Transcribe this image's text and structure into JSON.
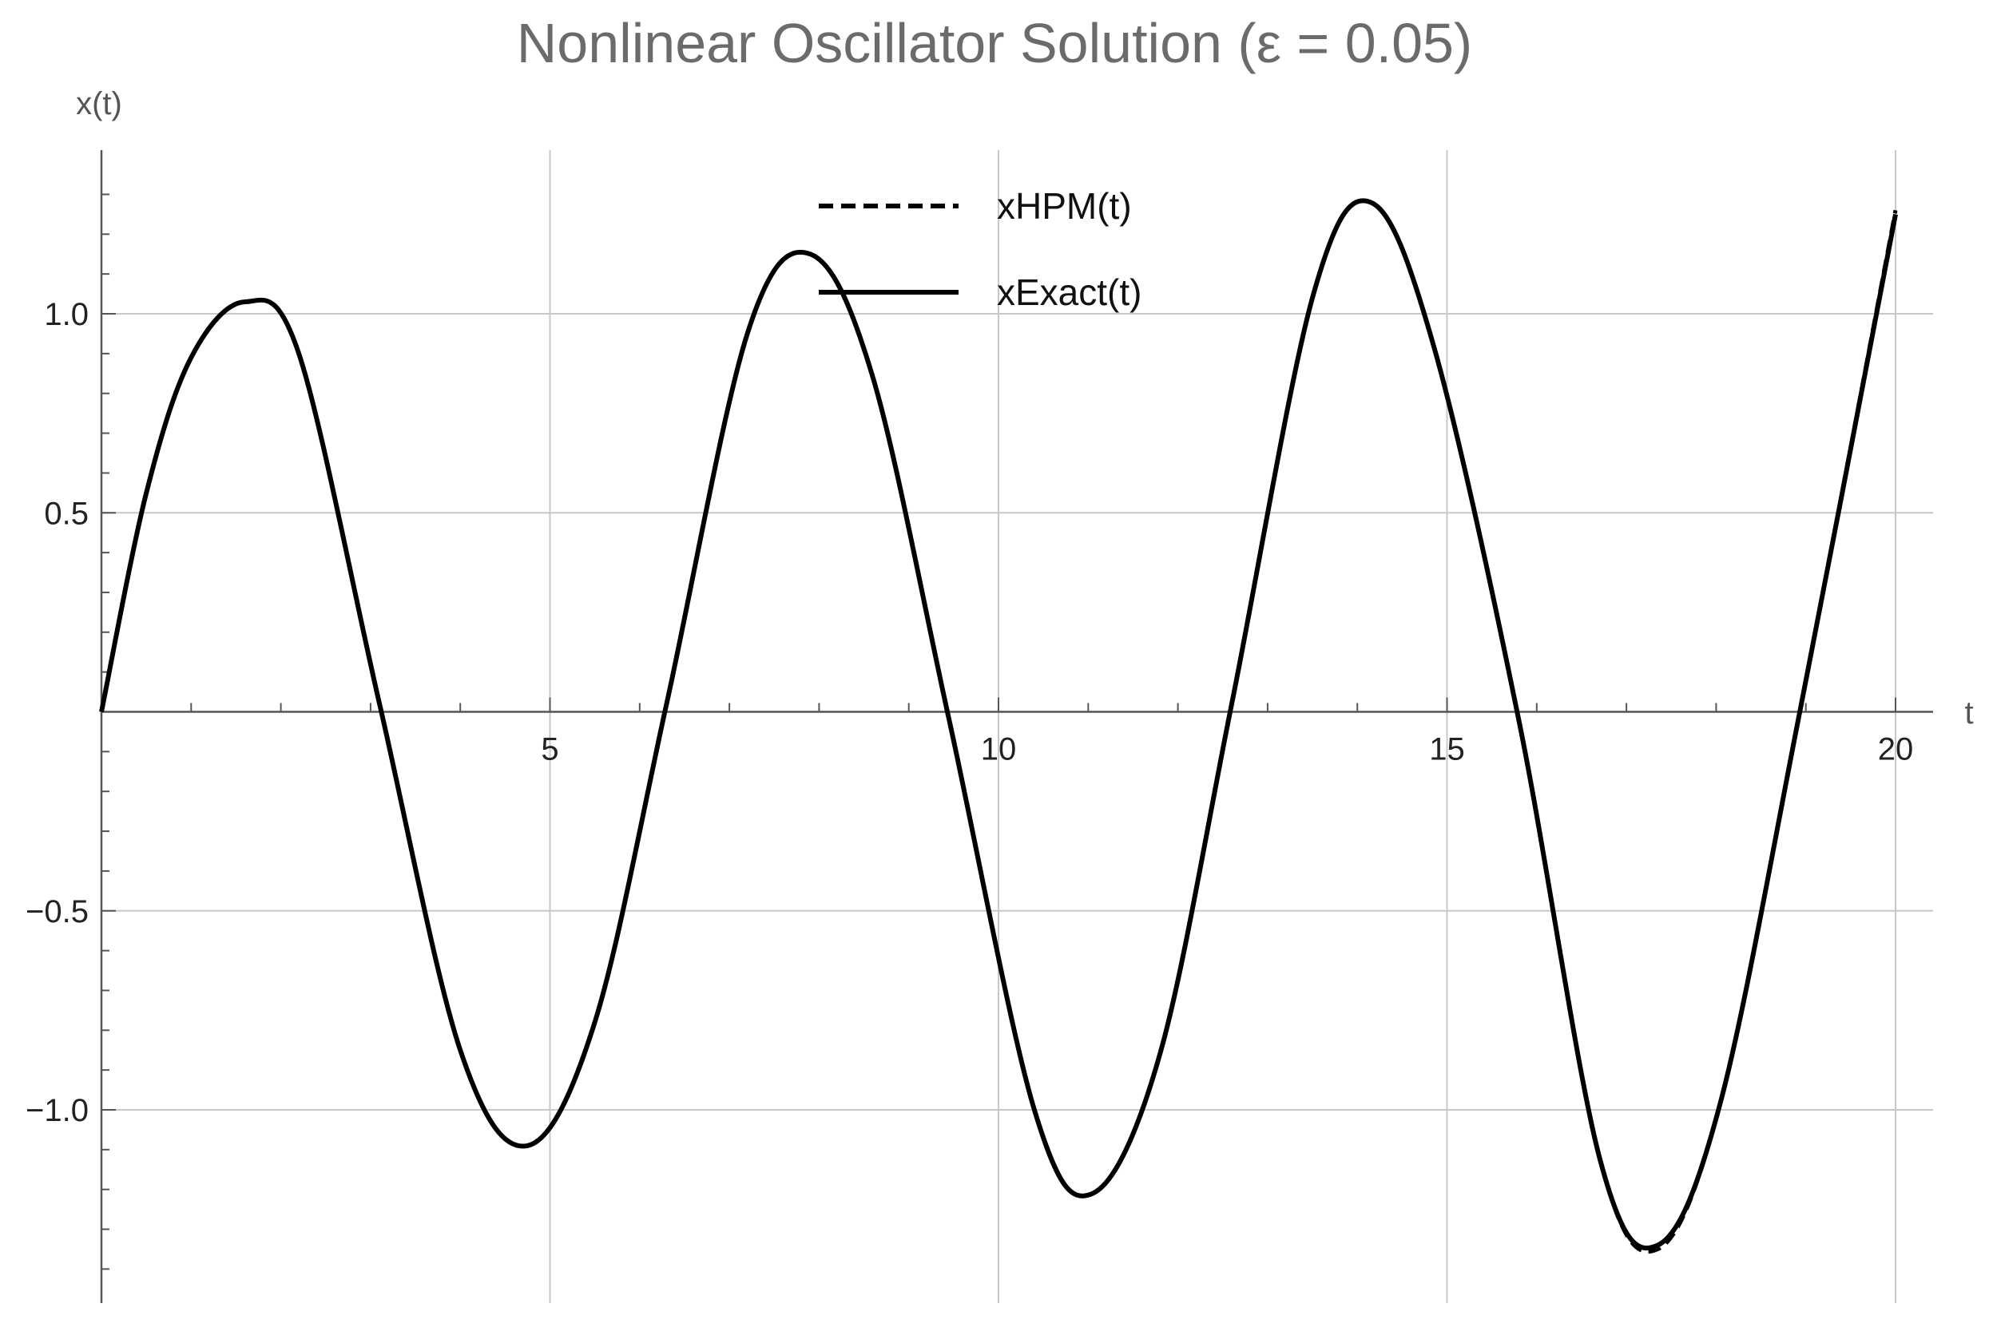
{
  "chart_data": {
    "type": "line",
    "title": "Nonlinear Oscillator Solution (ε = 0.05)",
    "xlabel": "t",
    "ylabel": "x(t)",
    "xlim": [
      0,
      20.4
    ],
    "ylim": [
      -1.48,
      1.41
    ],
    "grid": true,
    "legend_position": "top-center",
    "x_ticks": [
      {
        "value": 5,
        "label": "5"
      },
      {
        "value": 10,
        "label": "10"
      },
      {
        "value": 15,
        "label": "15"
      },
      {
        "value": 20,
        "label": "20"
      }
    ],
    "y_ticks": [
      {
        "value": 1.0,
        "label": "1.0"
      },
      {
        "value": 0.5,
        "label": "0.5"
      },
      {
        "value": -0.5,
        "label": "−0.5"
      },
      {
        "value": -1.0,
        "label": "−1.0"
      }
    ],
    "series": [
      {
        "name": "xHPM(t)",
        "style": "dashed",
        "color": "#000000",
        "x": [
          0,
          0.5,
          1,
          1.6,
          2.2,
          3.1,
          4.0,
          4.75,
          5.5,
          6.3,
          7.2,
          7.9,
          8.6,
          9.45,
          10.4,
          11.05,
          11.8,
          12.6,
          13.5,
          14.15,
          14.85,
          15.8,
          16.7,
          17.35,
          18.05,
          18.95,
          20.0
        ],
        "y": [
          0,
          0.55,
          0.89,
          1.03,
          0.9,
          0.02,
          -0.85,
          -1.09,
          -0.78,
          0.02,
          0.95,
          1.15,
          0.84,
          -0.02,
          -1.0,
          -1.21,
          -0.86,
          0.02,
          1.04,
          1.28,
          0.92,
          -0.02,
          -1.12,
          -1.35,
          -0.98,
          0.02,
          1.26
        ]
      },
      {
        "name": "xExact(t)",
        "style": "solid",
        "color": "#000000",
        "x": [
          0,
          0.5,
          1,
          1.6,
          2.2,
          3.1,
          4.0,
          4.75,
          5.5,
          6.3,
          7.2,
          7.9,
          8.6,
          9.45,
          10.4,
          11.05,
          11.8,
          12.6,
          13.5,
          14.15,
          14.85,
          15.8,
          16.7,
          17.35,
          18.05,
          18.95,
          20.0
        ],
        "y": [
          0,
          0.55,
          0.89,
          1.03,
          0.9,
          0.02,
          -0.85,
          -1.09,
          -0.78,
          0.02,
          0.95,
          1.15,
          0.84,
          -0.02,
          -1.0,
          -1.21,
          -0.86,
          0.02,
          1.04,
          1.28,
          0.92,
          -0.02,
          -1.12,
          -1.34,
          -0.98,
          0.02,
          1.25
        ]
      }
    ]
  }
}
